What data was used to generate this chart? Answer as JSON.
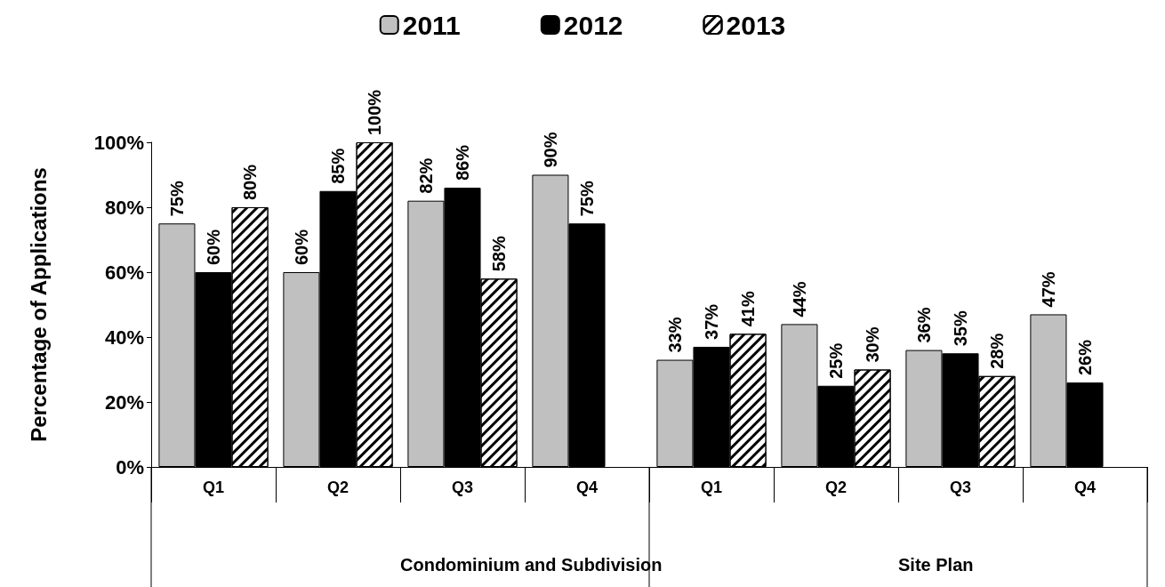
{
  "chart_data": {
    "type": "bar",
    "ylabel": "Percentage of Applications",
    "categories": [
      "Q1",
      "Q2",
      "Q3",
      "Q4",
      "Q1",
      "Q2",
      "Q3",
      "Q4"
    ],
    "series": [
      {
        "name": "2011",
        "color": "#c0c0c0",
        "values": [
          75,
          60,
          82,
          90,
          33,
          44,
          36,
          47
        ],
        "value_labels": [
          "75%",
          "60%",
          "82%",
          "90%",
          "33%",
          "44%",
          "36%",
          "47%"
        ]
      },
      {
        "name": "2012",
        "color": "#000000",
        "values": [
          60,
          85,
          86,
          75,
          37,
          25,
          35,
          26
        ],
        "value_labels": [
          "60%",
          "85%",
          "86%",
          "75%",
          "37%",
          "25%",
          "35%",
          "26%"
        ]
      },
      {
        "name": "2013",
        "color": "#ffffff",
        "values": [
          80,
          100,
          58,
          null,
          41,
          30,
          28,
          null
        ],
        "value_labels": [
          "80%",
          "100%",
          "58%",
          null,
          "41%",
          "30%",
          "28%",
          null
        ]
      }
    ],
    "ylim": [
      0,
      100
    ],
    "yticks": [
      {
        "value": 0,
        "label": "0%"
      },
      {
        "value": 20,
        "label": "20%"
      },
      {
        "value": 40,
        "label": "40%"
      },
      {
        "value": 60,
        "label": "60%"
      },
      {
        "value": 80,
        "label": "80%"
      },
      {
        "value": 100,
        "label": "100%"
      }
    ],
    "annotations": [
      "Condominium and Subdivision",
      "Site Plan"
    ],
    "grid": false,
    "legend": "top"
  }
}
